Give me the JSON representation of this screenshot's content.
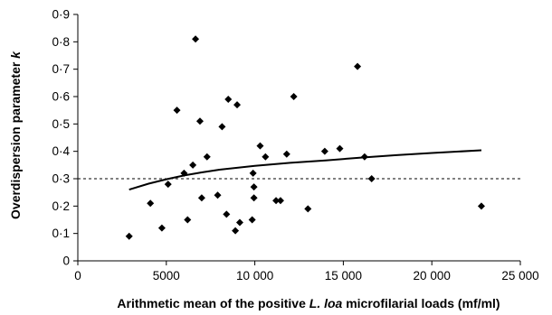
{
  "chart_data": {
    "type": "scatter",
    "xlabel": {
      "prefix": "Arithmetic mean of the positive ",
      "italic": "L. loa",
      "suffix": " microfilarial loads (mf/ml)"
    },
    "ylabel": {
      "prefix": "Overdispersion parameter ",
      "italic": "k"
    },
    "xlim": [
      0,
      25000
    ],
    "ylim": [
      0,
      0.9
    ],
    "x_ticks": [
      0,
      5000,
      10000,
      15000,
      20000,
      25000
    ],
    "x_tick_labels": [
      "0",
      "5000",
      "10 000",
      "15 000",
      "20 000",
      "25 000"
    ],
    "y_ticks": [
      0,
      0.1,
      0.2,
      0.3,
      0.4,
      0.5,
      0.6,
      0.7,
      0.8,
      0.9
    ],
    "y_tick_labels": [
      "0",
      "0·1",
      "0·2",
      "0·3",
      "0·4",
      "0·5",
      "0·6",
      "0·7",
      "0·8",
      "0·9"
    ],
    "grid": false,
    "series": [
      {
        "marker": "diamond",
        "color": "#000000",
        "points": [
          {
            "x": 2900,
            "y": 0.09
          },
          {
            "x": 4100,
            "y": 0.21
          },
          {
            "x": 4750,
            "y": 0.12
          },
          {
            "x": 5100,
            "y": 0.28
          },
          {
            "x": 5600,
            "y": 0.55
          },
          {
            "x": 6000,
            "y": 0.32
          },
          {
            "x": 6200,
            "y": 0.15
          },
          {
            "x": 6500,
            "y": 0.35
          },
          {
            "x": 6650,
            "y": 0.81
          },
          {
            "x": 6900,
            "y": 0.51
          },
          {
            "x": 7000,
            "y": 0.23
          },
          {
            "x": 7300,
            "y": 0.38
          },
          {
            "x": 7900,
            "y": 0.24
          },
          {
            "x": 8150,
            "y": 0.49
          },
          {
            "x": 8400,
            "y": 0.17
          },
          {
            "x": 8500,
            "y": 0.59
          },
          {
            "x": 8900,
            "y": 0.11
          },
          {
            "x": 9000,
            "y": 0.57
          },
          {
            "x": 9150,
            "y": 0.14
          },
          {
            "x": 9850,
            "y": 0.15
          },
          {
            "x": 9900,
            "y": 0.32
          },
          {
            "x": 9950,
            "y": 0.27
          },
          {
            "x": 9950,
            "y": 0.23
          },
          {
            "x": 10300,
            "y": 0.42
          },
          {
            "x": 10600,
            "y": 0.38
          },
          {
            "x": 11200,
            "y": 0.22
          },
          {
            "x": 11450,
            "y": 0.22
          },
          {
            "x": 11800,
            "y": 0.39
          },
          {
            "x": 12200,
            "y": 0.6
          },
          {
            "x": 13000,
            "y": 0.19
          },
          {
            "x": 13950,
            "y": 0.4
          },
          {
            "x": 14800,
            "y": 0.41
          },
          {
            "x": 15800,
            "y": 0.71
          },
          {
            "x": 16200,
            "y": 0.38
          },
          {
            "x": 16600,
            "y": 0.3
          },
          {
            "x": 22800,
            "y": 0.2
          }
        ]
      }
    ],
    "trend_line": {
      "style": "solid",
      "color": "#000000",
      "points": [
        {
          "x": 2900,
          "y": 0.26
        },
        {
          "x": 4000,
          "y": 0.282
        },
        {
          "x": 5000,
          "y": 0.298
        },
        {
          "x": 6000,
          "y": 0.312
        },
        {
          "x": 7000,
          "y": 0.323
        },
        {
          "x": 8000,
          "y": 0.333
        },
        {
          "x": 10000,
          "y": 0.347
        },
        {
          "x": 12000,
          "y": 0.358
        },
        {
          "x": 14000,
          "y": 0.367
        },
        {
          "x": 16000,
          "y": 0.377
        },
        {
          "x": 18000,
          "y": 0.386
        },
        {
          "x": 20000,
          "y": 0.394
        },
        {
          "x": 22800,
          "y": 0.404
        }
      ]
    },
    "reference_line": {
      "y": 0.3,
      "style": "dashed",
      "color": "#000000"
    }
  }
}
